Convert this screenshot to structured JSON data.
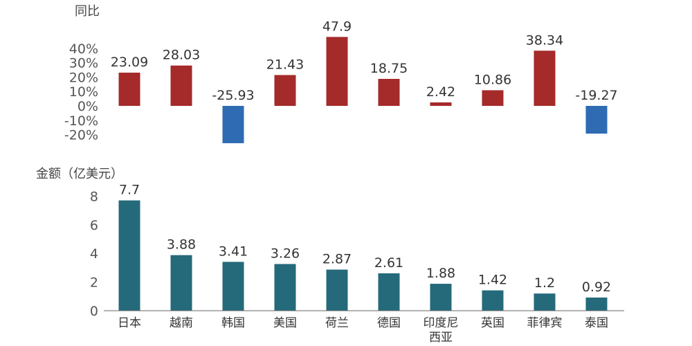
{
  "chart_data": [
    {
      "type": "bar",
      "ylabel": "同比",
      "categories": [
        "日本",
        "越南",
        "韩国",
        "美国",
        "荷兰",
        "德国",
        "印度尼西亚",
        "英国",
        "菲律宾",
        "泰国"
      ],
      "values": [
        23.09,
        28.03,
        -25.93,
        21.43,
        47.9,
        18.75,
        2.42,
        10.86,
        38.34,
        -19.27
      ],
      "value_labels": [
        "23.09",
        "28.03",
        "-25.93",
        "21.43",
        "47.9",
        "18.75",
        "2.42",
        "10.86",
        "38.34",
        "-19.27"
      ],
      "ylim": [
        -20,
        40
      ],
      "yticks": [
        "40%",
        "30%",
        "20%",
        "10%",
        "0%",
        "-10%",
        "-20%"
      ],
      "colors": {
        "positive": "#A52A2A",
        "negative": "#2E6BB3"
      },
      "grid": false
    },
    {
      "type": "bar",
      "ylabel": "金额（亿美元）",
      "categories": [
        "日本",
        "越南",
        "韩国",
        "美国",
        "荷兰",
        "德国",
        "印度尼西亚",
        "英国",
        "菲律宾",
        "泰国"
      ],
      "category_lines": [
        [
          "日本"
        ],
        [
          "越南"
        ],
        [
          "韩国"
        ],
        [
          "美国"
        ],
        [
          "荷兰"
        ],
        [
          "德国"
        ],
        [
          "印度尼",
          "西亚"
        ],
        [
          "英国"
        ],
        [
          "菲律宾"
        ],
        [
          "泰国"
        ]
      ],
      "values": [
        7.7,
        3.88,
        3.41,
        3.26,
        2.87,
        2.61,
        1.88,
        1.42,
        1.2,
        0.92
      ],
      "value_labels": [
        "7.7",
        "3.88",
        "3.41",
        "3.26",
        "2.87",
        "2.61",
        "1.88",
        "1.42",
        "1.2",
        "0.92"
      ],
      "ylim": [
        0,
        8
      ],
      "yticks": [
        "8",
        "6",
        "4",
        "2",
        "0"
      ],
      "colors": {
        "bar": "#256A7A"
      },
      "grid": false
    }
  ]
}
